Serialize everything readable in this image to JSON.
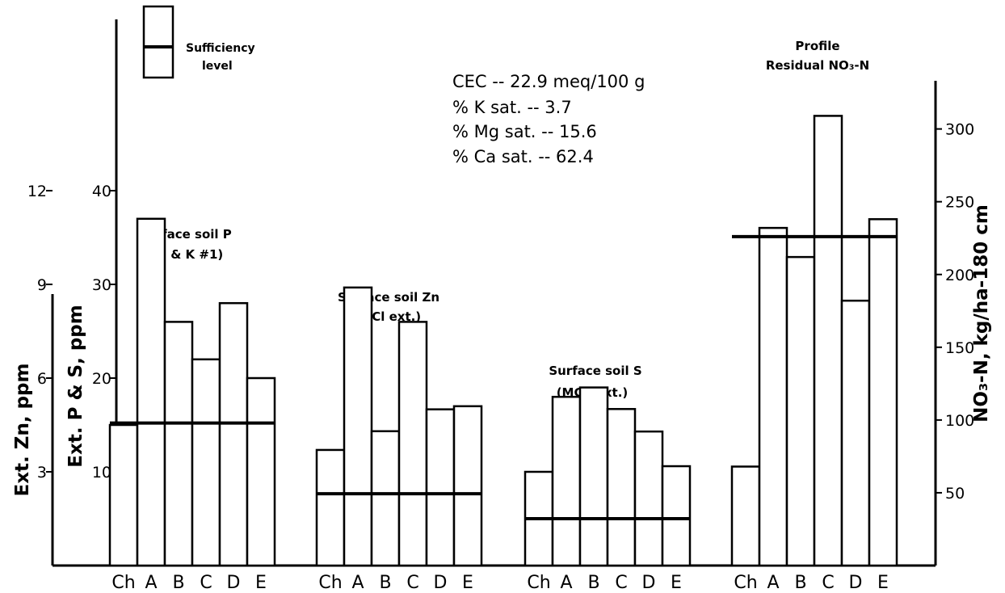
{
  "chart_data": {
    "type": "bar",
    "categories": [
      "Ch",
      "A",
      "B",
      "C",
      "D",
      "E"
    ],
    "legend": {
      "label_line1": "Sufficiency",
      "label_line2": "level"
    },
    "cec_text": [
      "CEC -- 22.9 meq/100 g",
      "% K sat. -- 3.7",
      "% Mg sat. -- 15.6",
      "% Ca sat. -- 62.4"
    ],
    "axes": {
      "zn": {
        "label": "Ext. Zn, ppm",
        "ticks": [
          3,
          6,
          9,
          12
        ],
        "range": [
          0,
          15
        ]
      },
      "ps": {
        "label": "Ext. P & S, ppm",
        "ticks": [
          10,
          20,
          30,
          40
        ],
        "range": [
          0,
          50
        ]
      },
      "no3": {
        "label": "NO₃-N, kg/ha-180 cm",
        "ticks": [
          50,
          100,
          150,
          200,
          250,
          300
        ],
        "range": [
          0,
          322
        ]
      }
    },
    "groups": [
      {
        "title_line1": "Surface soil P",
        "title_line2": "(B & K #1)",
        "axis": "ps",
        "values": [
          15,
          37,
          26,
          22,
          28,
          20
        ],
        "sufficiency": 15.2
      },
      {
        "title_line1": "Surface soil Zn",
        "title_line2": "(HCl ext.)",
        "axis": "zn",
        "values": [
          3.7,
          8.9,
          4.3,
          7.8,
          5.0,
          5.1
        ],
        "sufficiency": 2.3
      },
      {
        "title_line1": "Surface soil S",
        "title_line2": "(MCP ext.)",
        "axis": "ps",
        "values": [
          10,
          18,
          19,
          16.7,
          14.3,
          10.6
        ],
        "sufficiency": 5
      },
      {
        "title_line1": "Profile",
        "title_line2": "Residual NO₃-N",
        "axis": "no3",
        "values": [
          68,
          232,
          212,
          309,
          182,
          238
        ],
        "sufficiency": 226
      }
    ]
  }
}
